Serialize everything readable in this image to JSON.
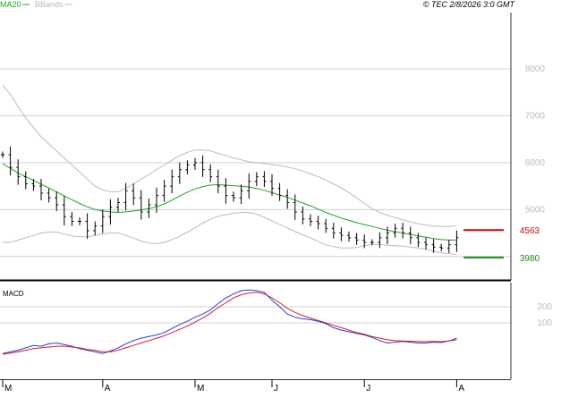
{
  "header": {
    "legend_ma_label": "MA20",
    "legend_bb_label": "BBands",
    "copyright": "© TEC 2/8/2026 3:0 GMT"
  },
  "colors": {
    "ma": "#1fa31f",
    "bbands": "#bbbbbb",
    "price": "#000000",
    "macd": "#1f3fdd",
    "signal": "#d42020",
    "resistance": "#dd0000",
    "support": "#1a8a1a",
    "grid": "#d0d0d0",
    "axis_text": "#bbbbbb"
  },
  "chart_data": [
    {
      "type": "ohlc",
      "name": "price",
      "ylim": [
        3500,
        9200
      ],
      "y_ticks": [
        {
          "value": 5000,
          "label": "5000"
        },
        {
          "value": 6000,
          "label": "6000"
        },
        {
          "value": 7000,
          "label": "7000"
        },
        {
          "value": 8000,
          "label": "8000"
        }
      ],
      "x_labels": [
        {
          "week": 0,
          "label": "M"
        },
        {
          "week": 13,
          "label": "A"
        },
        {
          "week": 25,
          "label": "M"
        },
        {
          "week": 35,
          "label": "J"
        },
        {
          "week": 47,
          "label": "J"
        },
        {
          "week": 59,
          "label": "A"
        }
      ],
      "levels": [
        {
          "name": "resistance",
          "value": 4563,
          "label": "4563"
        },
        {
          "name": "support",
          "value": 3980,
          "label": "3980"
        }
      ],
      "close": [
        6170,
        5900,
        5700,
        5550,
        5500,
        5350,
        5250,
        5100,
        4850,
        4750,
        4750,
        4550,
        4650,
        4850,
        5050,
        5150,
        5400,
        5250,
        4950,
        5100,
        5300,
        5500,
        5700,
        5850,
        5950,
        6000,
        5850,
        5700,
        5500,
        5300,
        5250,
        5400,
        5600,
        5700,
        5600,
        5450,
        5300,
        5150,
        4950,
        4800,
        4750,
        4700,
        4600,
        4500,
        4450,
        4400,
        4350,
        4300,
        4300,
        4400,
        4500,
        4600,
        4500,
        4400,
        4300,
        4250,
        4200,
        4180,
        4250,
        4400
      ],
      "ma20": [
        5980,
        5880,
        5780,
        5700,
        5620,
        5540,
        5460,
        5380,
        5290,
        5210,
        5130,
        5060,
        5000,
        4970,
        4950,
        4940,
        4950,
        4970,
        4990,
        5020,
        5060,
        5120,
        5200,
        5290,
        5370,
        5440,
        5490,
        5520,
        5530,
        5520,
        5510,
        5500,
        5480,
        5450,
        5410,
        5360,
        5310,
        5260,
        5200,
        5140,
        5080,
        5010,
        4940,
        4880,
        4820,
        4770,
        4720,
        4680,
        4640,
        4600,
        4560,
        4530,
        4500,
        4470,
        4440,
        4410,
        4380,
        4360,
        4350,
        4350
      ],
      "bb_upper": [
        7650,
        7450,
        7200,
        6950,
        6750,
        6550,
        6400,
        6250,
        6100,
        5950,
        5800,
        5650,
        5500,
        5420,
        5380,
        5380,
        5450,
        5550,
        5650,
        5750,
        5850,
        5950,
        6050,
        6150,
        6220,
        6270,
        6270,
        6250,
        6200,
        6150,
        6100,
        6060,
        6020,
        6000,
        5980,
        5960,
        5940,
        5910,
        5870,
        5820,
        5760,
        5700,
        5630,
        5550,
        5460,
        5360,
        5250,
        5130,
        5020,
        4940,
        4880,
        4830,
        4780,
        4740,
        4700,
        4670,
        4650,
        4640,
        4640,
        4660
      ],
      "bb_lower": [
        4300,
        4300,
        4350,
        4400,
        4450,
        4500,
        4520,
        4520,
        4480,
        4440,
        4420,
        4420,
        4450,
        4480,
        4500,
        4500,
        4450,
        4390,
        4330,
        4290,
        4270,
        4300,
        4360,
        4430,
        4520,
        4610,
        4710,
        4790,
        4860,
        4890,
        4920,
        4940,
        4940,
        4900,
        4840,
        4760,
        4680,
        4610,
        4530,
        4460,
        4400,
        4320,
        4250,
        4210,
        4180,
        4180,
        4190,
        4230,
        4260,
        4260,
        4240,
        4230,
        4220,
        4200,
        4180,
        4150,
        4110,
        4080,
        4060,
        4040
      ]
    },
    {
      "type": "line",
      "name": "MACD",
      "title": "MACD",
      "ylim": [
        -250,
        350
      ],
      "y_ticks": [
        {
          "value": 200,
          "label": "200"
        },
        {
          "value": 100,
          "label": "100"
        }
      ],
      "series": [
        {
          "name": "MACD",
          "values": [
            -90,
            -80,
            -70,
            -55,
            -40,
            -45,
            -30,
            -25,
            -35,
            -45,
            -60,
            -70,
            -80,
            -90,
            -75,
            -55,
            -30,
            -10,
            5,
            15,
            25,
            40,
            65,
            90,
            110,
            135,
            155,
            180,
            220,
            255,
            280,
            300,
            305,
            300,
            290,
            240,
            200,
            155,
            135,
            125,
            120,
            110,
            95,
            70,
            55,
            45,
            35,
            25,
            10,
            -10,
            -25,
            -20,
            -15,
            -20,
            -25,
            -25,
            -20,
            -22,
            -12,
            5
          ]
        },
        {
          "name": "Signal",
          "values": [
            -95,
            -88,
            -80,
            -70,
            -60,
            -55,
            -50,
            -45,
            -45,
            -50,
            -55,
            -65,
            -70,
            -80,
            -80,
            -70,
            -55,
            -40,
            -25,
            -10,
            5,
            20,
            40,
            60,
            80,
            105,
            130,
            160,
            195,
            225,
            255,
            275,
            285,
            290,
            280,
            255,
            225,
            190,
            165,
            145,
            130,
            115,
            100,
            85,
            70,
            55,
            40,
            30,
            15,
            5,
            -5,
            -10,
            -12,
            -14,
            -16,
            -16,
            -15,
            -16,
            -12,
            -5
          ]
        }
      ]
    }
  ]
}
